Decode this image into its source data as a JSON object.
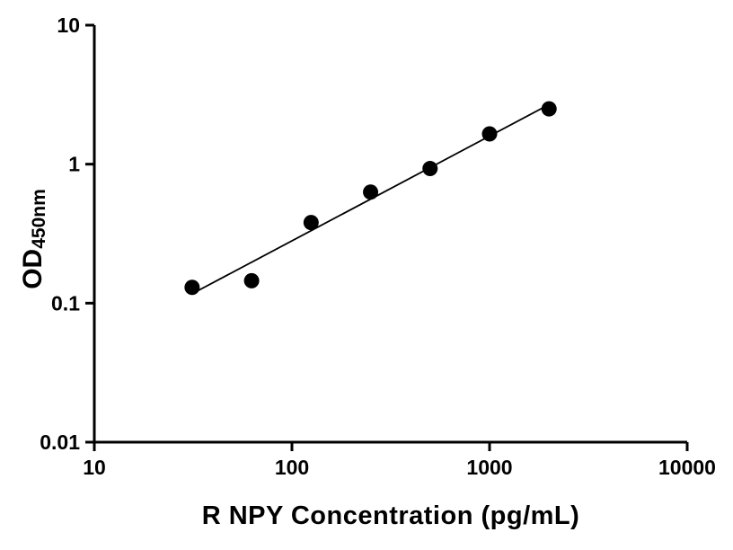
{
  "chart_data": {
    "type": "scatter",
    "title": "",
    "xlabel": "R NPY Concentration (pg/mL)",
    "ylabel_main": "OD",
    "ylabel_sub": "450nm",
    "x_scale": "log",
    "y_scale": "log",
    "xlim": [
      10,
      10000
    ],
    "ylim": [
      0.01,
      10
    ],
    "grid": false,
    "legend": "none",
    "x_ticks": [
      {
        "value": 10,
        "label": "10"
      },
      {
        "value": 100,
        "label": "100"
      },
      {
        "value": 1000,
        "label": "1000"
      },
      {
        "value": 10000,
        "label": "10000"
      }
    ],
    "y_ticks": [
      {
        "value": 0.01,
        "label": "0.01"
      },
      {
        "value": 0.1,
        "label": "0.1"
      },
      {
        "value": 1,
        "label": "1"
      },
      {
        "value": 10,
        "label": "10"
      }
    ],
    "points": [
      {
        "x": 31.25,
        "y": 0.13
      },
      {
        "x": 62.5,
        "y": 0.145
      },
      {
        "x": 125,
        "y": 0.38
      },
      {
        "x": 250,
        "y": 0.63
      },
      {
        "x": 500,
        "y": 0.93
      },
      {
        "x": 1000,
        "y": 1.65
      },
      {
        "x": 2000,
        "y": 2.5
      }
    ],
    "fit_line": true,
    "marker_color": "#000000",
    "line_color": "#000000",
    "axis_color": "#000000"
  }
}
